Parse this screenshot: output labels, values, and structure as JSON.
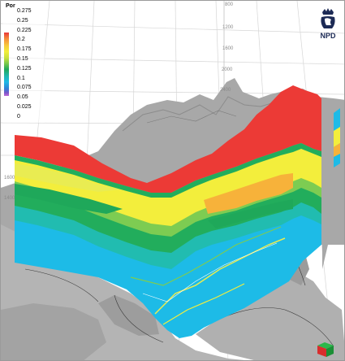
{
  "legend": {
    "title": "Por",
    "ticks": [
      "0.275",
      "0.25",
      "0.225",
      "0.2",
      "0.175",
      "0.15",
      "0.125",
      "0.1",
      "0.075",
      "0.05",
      "0.025",
      "0"
    ],
    "colors": [
      "#e8373a",
      "#f58d3a",
      "#f7c63c",
      "#f2ee3a",
      "#c8e03e",
      "#6ec54a",
      "#1fa85a",
      "#1fb6a8",
      "#1fb9e6",
      "#2f84d6",
      "#7a55c9",
      "#c06bd8"
    ]
  },
  "logo": {
    "text": "NPD",
    "icon": "crown-lion-emblem"
  },
  "depth_labels": [
    "800",
    "1200",
    "1600",
    "2000",
    "2400"
  ],
  "depth_labels_side": [
    "1600",
    "1400"
  ],
  "colors": {
    "surface": "#a6a6a6",
    "surface_light": "#c8c8c8",
    "grid": "#cfcfcf",
    "red_layer": "#ec3a36",
    "yellow": "#f3ee3c",
    "light_yellow": "#e9ec52",
    "orange": "#f7b23a",
    "green": "#22ad5c",
    "light_green": "#7dcc52",
    "teal": "#21bcb0",
    "cyan": "#1dbbe7"
  }
}
